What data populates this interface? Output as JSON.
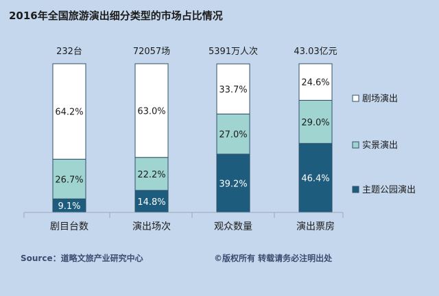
{
  "title": "2016年全国旅游演出细分类型的市场占比情况",
  "source": "Source：道略文旅产业研究中心",
  "copyright": "©版权所有  转载请务必注明出处",
  "chart_data": {
    "type": "bar",
    "stacked": true,
    "percent": true,
    "categories": [
      "剧目台数",
      "演出场次",
      "观众数量",
      "演出票房"
    ],
    "totals": [
      "232台",
      "72057场",
      "5391万人次",
      "43.03亿元"
    ],
    "series": [
      {
        "name": "主题公园演出",
        "color": "#1e5c7e",
        "values": [
          9.1,
          14.8,
          39.2,
          46.4
        ],
        "labels": [
          "9.1%",
          "14.8%",
          "39.2%",
          "46.4%"
        ]
      },
      {
        "name": "实景演出",
        "color": "#9fd4d0",
        "values": [
          26.7,
          22.2,
          27.0,
          29.0
        ],
        "labels": [
          "26.7%",
          "22.2%",
          "27.0%",
          "29.0%"
        ]
      },
      {
        "name": "剧场演出",
        "color": "#ffffff",
        "values": [
          64.2,
          63.0,
          33.7,
          24.6
        ],
        "labels": [
          "64.2%",
          "63.0%",
          "33.7%",
          "24.6%"
        ]
      }
    ],
    "legend_order": [
      "剧场演出",
      "实景演出",
      "主题公园演出"
    ],
    "ylim": [
      0,
      100
    ],
    "legend_position": "right"
  }
}
